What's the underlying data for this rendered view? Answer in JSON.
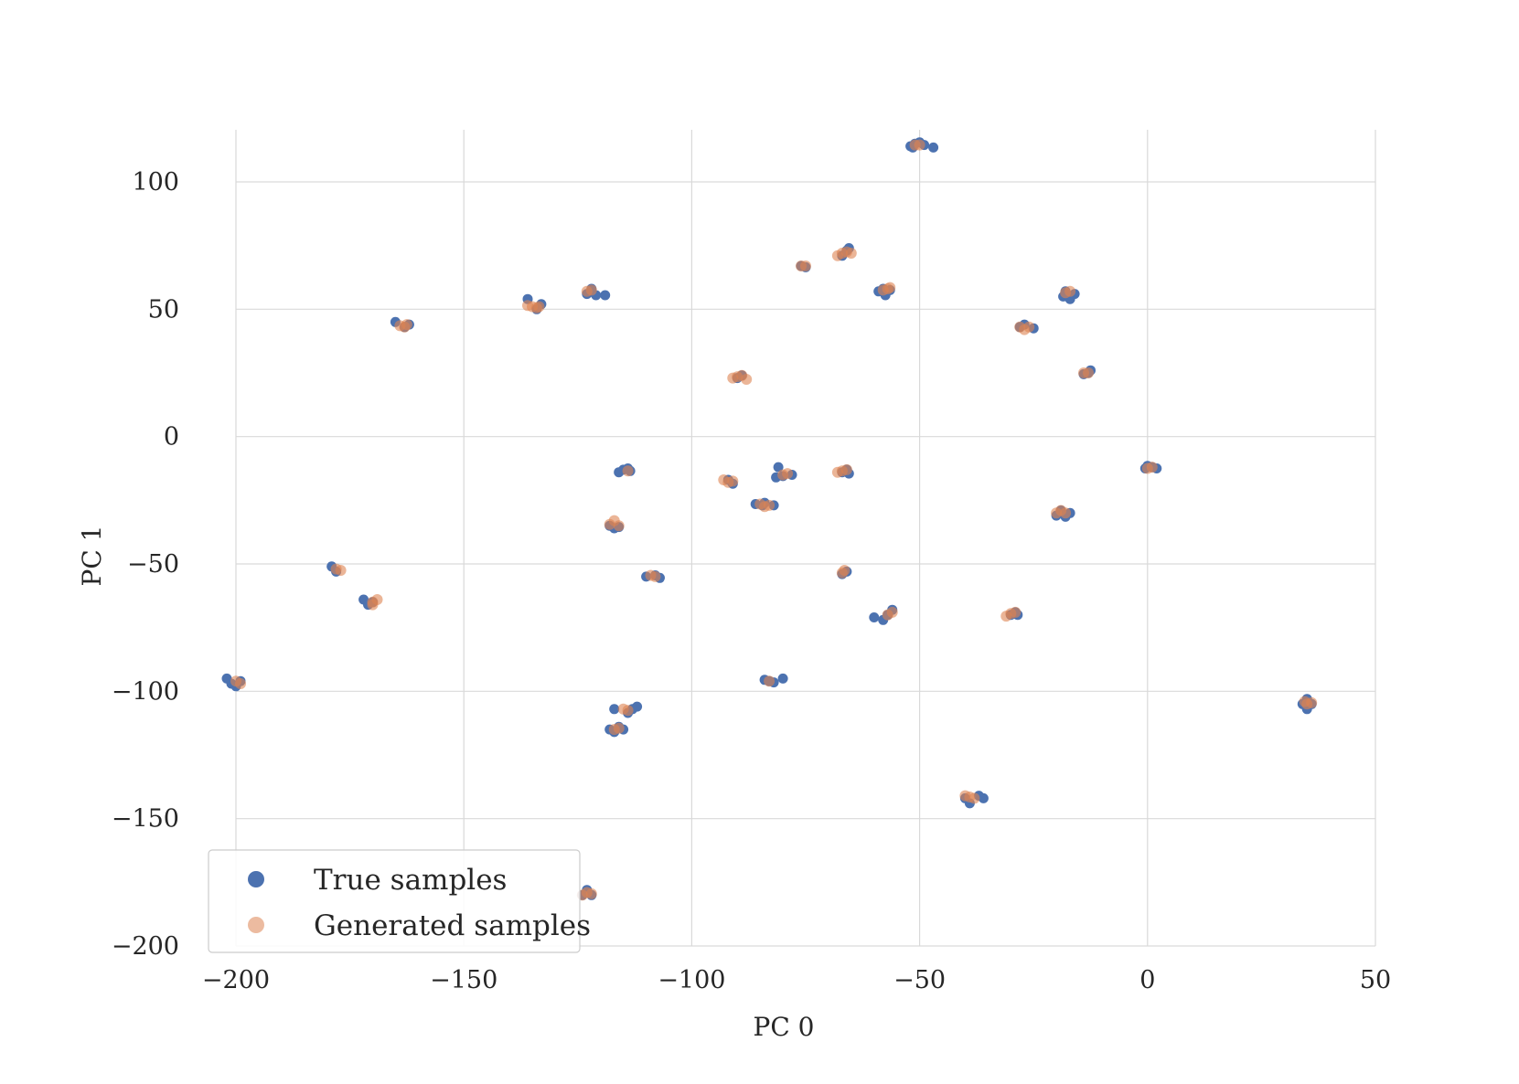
{
  "chart_data": {
    "type": "scatter",
    "title": "",
    "xlabel": "PC 0",
    "ylabel": "PC 1",
    "xlim": [
      -208,
      50
    ],
    "ylim": [
      -206,
      120
    ],
    "xticks": [
      -200,
      -150,
      -100,
      -50,
      0,
      50
    ],
    "yticks": [
      -200,
      -150,
      -100,
      -50,
      0,
      50,
      100
    ],
    "xtick_labels": [
      "−200",
      "−150",
      "−100",
      "−50",
      "0",
      "50"
    ],
    "ytick_labels": [
      "−200",
      "−150",
      "−100",
      "−50",
      "0",
      "50",
      "100"
    ],
    "grid": true,
    "legend_position": "lower-left",
    "series": [
      {
        "name": "True samples",
        "color": "#4c72b0",
        "points": [
          [
            -51,
            115
          ],
          [
            -52,
            114
          ],
          [
            -50,
            115.5
          ],
          [
            -49,
            114.5
          ],
          [
            -47,
            113.5
          ],
          [
            -51.5,
            113.5
          ],
          [
            -66,
            73
          ],
          [
            -65.5,
            74
          ],
          [
            -67,
            71
          ],
          [
            -76,
            67
          ],
          [
            -75,
            66.5
          ],
          [
            -58,
            58
          ],
          [
            -57.5,
            55.5
          ],
          [
            -56.5,
            57.5
          ],
          [
            -59,
            57
          ],
          [
            -122,
            58
          ],
          [
            -123,
            56
          ],
          [
            -119,
            55.5
          ],
          [
            -121,
            55.5
          ],
          [
            -136,
            54
          ],
          [
            -134,
            50
          ],
          [
            -133,
            52
          ],
          [
            -165,
            45
          ],
          [
            -163,
            43
          ],
          [
            -162,
            44
          ],
          [
            -18,
            57
          ],
          [
            -17,
            54
          ],
          [
            -16,
            56
          ],
          [
            -18.5,
            55
          ],
          [
            -28,
            43
          ],
          [
            -25,
            42.5
          ],
          [
            -27,
            44
          ],
          [
            -13,
            25
          ],
          [
            -12.5,
            26
          ],
          [
            -14,
            24.5
          ],
          [
            -89,
            24
          ],
          [
            -90,
            23
          ],
          [
            -115,
            -13
          ],
          [
            -114,
            -12.5
          ],
          [
            -116,
            -14
          ],
          [
            -113.5,
            -13.5
          ],
          [
            -92,
            -17
          ],
          [
            -91,
            -18.5
          ],
          [
            -81,
            -12
          ],
          [
            -80,
            -15.5
          ],
          [
            -78,
            -15
          ],
          [
            -81.5,
            -16
          ],
          [
            -66,
            -13
          ],
          [
            -65.5,
            -14.5
          ],
          [
            -67,
            -14
          ],
          [
            0,
            -11.5
          ],
          [
            1,
            -12
          ],
          [
            2,
            -12.5
          ],
          [
            -0.5,
            -12.5
          ],
          [
            -84,
            -26
          ],
          [
            -86,
            -26.5
          ],
          [
            -82,
            -27
          ],
          [
            -84.5,
            -27
          ],
          [
            -20,
            -31
          ],
          [
            -18,
            -31.5
          ],
          [
            -19,
            -29
          ],
          [
            -17,
            -30
          ],
          [
            -117,
            -36
          ],
          [
            -118,
            -35
          ],
          [
            -116,
            -35.5
          ],
          [
            -179,
            -51
          ],
          [
            -178,
            -53
          ],
          [
            -172,
            -64
          ],
          [
            -170,
            -65
          ],
          [
            -171,
            -66
          ],
          [
            -108,
            -54.5
          ],
          [
            -110,
            -55
          ],
          [
            -107,
            -55.5
          ],
          [
            -67,
            -54
          ],
          [
            -66,
            -53
          ],
          [
            -60,
            -71
          ],
          [
            -58,
            -72
          ],
          [
            -56,
            -68
          ],
          [
            -57,
            -70
          ],
          [
            -30,
            -70
          ],
          [
            -29,
            -69
          ],
          [
            -28.5,
            -70
          ],
          [
            -202,
            -95
          ],
          [
            -200,
            -98
          ],
          [
            -199,
            -96
          ],
          [
            -201,
            -97
          ],
          [
            -84,
            -95.5
          ],
          [
            -82,
            -96.5
          ],
          [
            -80,
            -95
          ],
          [
            -83,
            -96
          ],
          [
            -117,
            -107
          ],
          [
            -112,
            -106
          ],
          [
            -114,
            -108.5
          ],
          [
            -113,
            -107
          ],
          [
            -118,
            -115
          ],
          [
            -117,
            -116
          ],
          [
            -116,
            -114
          ],
          [
            -115,
            -115
          ],
          [
            -40,
            -142
          ],
          [
            -39,
            -144
          ],
          [
            -37,
            -141
          ],
          [
            -36,
            -142
          ],
          [
            35,
            -103
          ],
          [
            36,
            -105
          ],
          [
            35,
            -107
          ],
          [
            34,
            -105
          ],
          [
            -123,
            -178
          ],
          [
            -122,
            -180
          ],
          [
            -124,
            -180
          ]
        ]
      },
      {
        "name": "Generated samples",
        "color": "#dd8452",
        "points": [
          [
            -51,
            114.5
          ],
          [
            -50,
            114.5
          ],
          [
            -67,
            72
          ],
          [
            -66,
            72.5
          ],
          [
            -68,
            71
          ],
          [
            -65,
            72
          ],
          [
            -76,
            67
          ],
          [
            -75,
            67
          ],
          [
            -58,
            57.5
          ],
          [
            -57,
            58
          ],
          [
            -56.5,
            58.5
          ],
          [
            -123,
            57
          ],
          [
            -122,
            57.5
          ],
          [
            -135,
            51
          ],
          [
            -134,
            50.5
          ],
          [
            -136,
            51.5
          ],
          [
            -133.5,
            51
          ],
          [
            -164,
            43.5
          ],
          [
            -163,
            43
          ],
          [
            -162.5,
            44
          ],
          [
            -18,
            56.5
          ],
          [
            -17,
            57
          ],
          [
            -28,
            43
          ],
          [
            -27,
            42
          ],
          [
            -26,
            43
          ],
          [
            -14,
            25
          ],
          [
            -13,
            25
          ],
          [
            -90,
            23.5
          ],
          [
            -89,
            24
          ],
          [
            -88,
            22.5
          ],
          [
            -91,
            23
          ],
          [
            -114,
            -13.5
          ],
          [
            -92,
            -18
          ],
          [
            -91,
            -17.5
          ],
          [
            -93,
            -17
          ],
          [
            -80,
            -15
          ],
          [
            -79,
            -14.5
          ],
          [
            -67,
            -13.5
          ],
          [
            -66,
            -13
          ],
          [
            -68,
            -14
          ],
          [
            0,
            -12.5
          ],
          [
            1,
            -12
          ],
          [
            -84,
            -27.5
          ],
          [
            -83,
            -27
          ],
          [
            -85,
            -26.5
          ],
          [
            -19,
            -29
          ],
          [
            -18,
            -30
          ],
          [
            -20,
            -30
          ],
          [
            -118,
            -34.5
          ],
          [
            -117,
            -33
          ],
          [
            -116,
            -35
          ],
          [
            -178,
            -52
          ],
          [
            -177,
            -52.5
          ],
          [
            -170,
            -65
          ],
          [
            -169,
            -64
          ],
          [
            -170,
            -66
          ],
          [
            -109,
            -54.5
          ],
          [
            -108,
            -55
          ],
          [
            -67,
            -53.5
          ],
          [
            -66.5,
            -52.5
          ],
          [
            -57,
            -70
          ],
          [
            -56,
            -69
          ],
          [
            -30,
            -69.5
          ],
          [
            -29,
            -69
          ],
          [
            -31,
            -70.5
          ],
          [
            -200,
            -96
          ],
          [
            -199,
            -97
          ],
          [
            -83,
            -96
          ],
          [
            -115,
            -107
          ],
          [
            -114,
            -107.5
          ],
          [
            -117,
            -115
          ],
          [
            -116,
            -114.5
          ],
          [
            -40,
            -141
          ],
          [
            -38,
            -142
          ],
          [
            -39,
            -141.5
          ],
          [
            35,
            -105
          ],
          [
            36,
            -104.5
          ],
          [
            34.5,
            -104
          ],
          [
            -123,
            -179
          ],
          [
            -122,
            -179.5
          ],
          [
            -124,
            -180
          ]
        ]
      }
    ]
  }
}
